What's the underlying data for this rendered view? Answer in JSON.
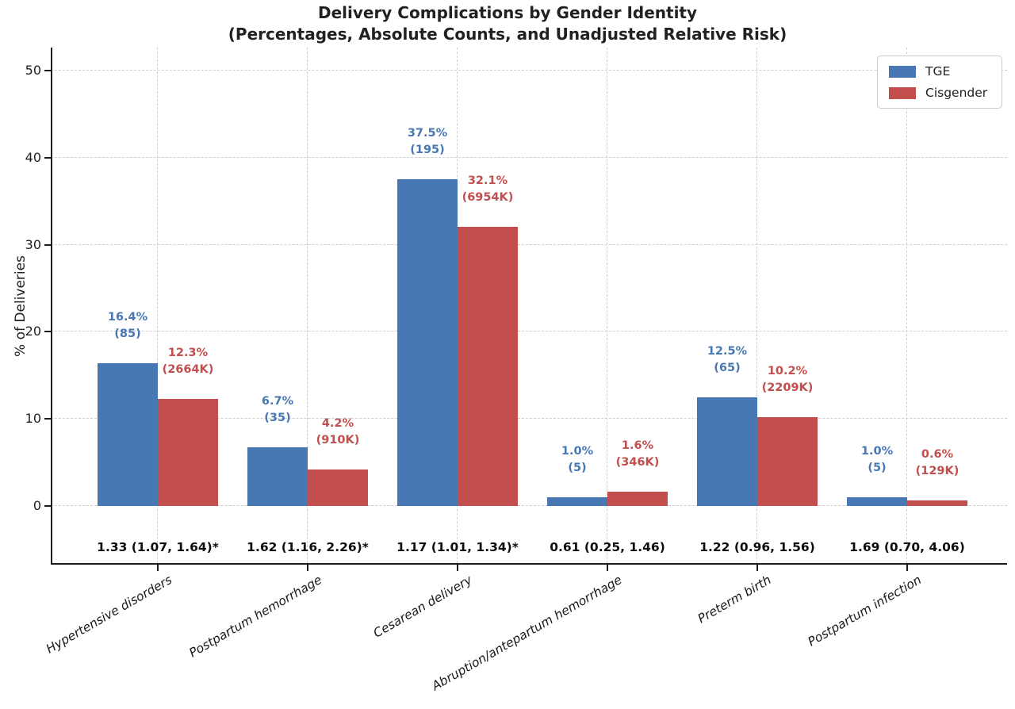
{
  "title": {
    "line1": "Delivery Complications by Gender Identity",
    "line2": "(Percentages, Absolute Counts, and Unadjusted Relative Risk)"
  },
  "chart_data": {
    "type": "bar",
    "title": "Delivery Complications by Gender Identity",
    "subtitle": "(Percentages, Absolute Counts, and Unadjusted Relative Risk)",
    "xlabel": "",
    "ylabel": "% of Deliveries",
    "ylim": [
      -6.6,
      52.6
    ],
    "yticks": [
      0,
      10,
      20,
      30,
      40,
      50
    ],
    "grid": "dashed horizontal and vertical gridlines",
    "legend_position": "upper right",
    "categories": [
      "Hypertensive disorders",
      "Postpartum hemorrhage",
      "Cesarean delivery",
      "Abruption/antepartum hemorrhage",
      "Preterm birth",
      "Postpartum infection"
    ],
    "series": [
      {
        "name": "TGE",
        "color": "#4878B4",
        "values": [
          16.4,
          6.7,
          37.5,
          1.0,
          12.5,
          1.0
        ],
        "pct_labels": [
          "16.4%",
          "6.7%",
          "37.5%",
          "1.0%",
          "12.5%",
          "1.0%"
        ],
        "count_labels": [
          "(85)",
          "(35)",
          "(195)",
          "(5)",
          "(65)",
          "(5)"
        ]
      },
      {
        "name": "Cisgender",
        "color": "#C24E4E",
        "values": [
          12.3,
          4.2,
          32.1,
          1.6,
          10.2,
          0.6
        ],
        "pct_labels": [
          "12.3%",
          "4.2%",
          "32.1%",
          "1.6%",
          "10.2%",
          "0.6%"
        ],
        "count_labels": [
          "(2664K)",
          "(910K)",
          "(6954K)",
          "(346K)",
          "(2209K)",
          "(129K)"
        ]
      }
    ],
    "relative_risk": [
      "1.33 (1.07, 1.64)*",
      "1.62 (1.16, 2.26)*",
      "1.17 (1.01, 1.34)*",
      "0.61 (0.25, 1.46)",
      "1.22 (0.96, 1.56)",
      "1.69 (0.70, 4.06)"
    ]
  }
}
